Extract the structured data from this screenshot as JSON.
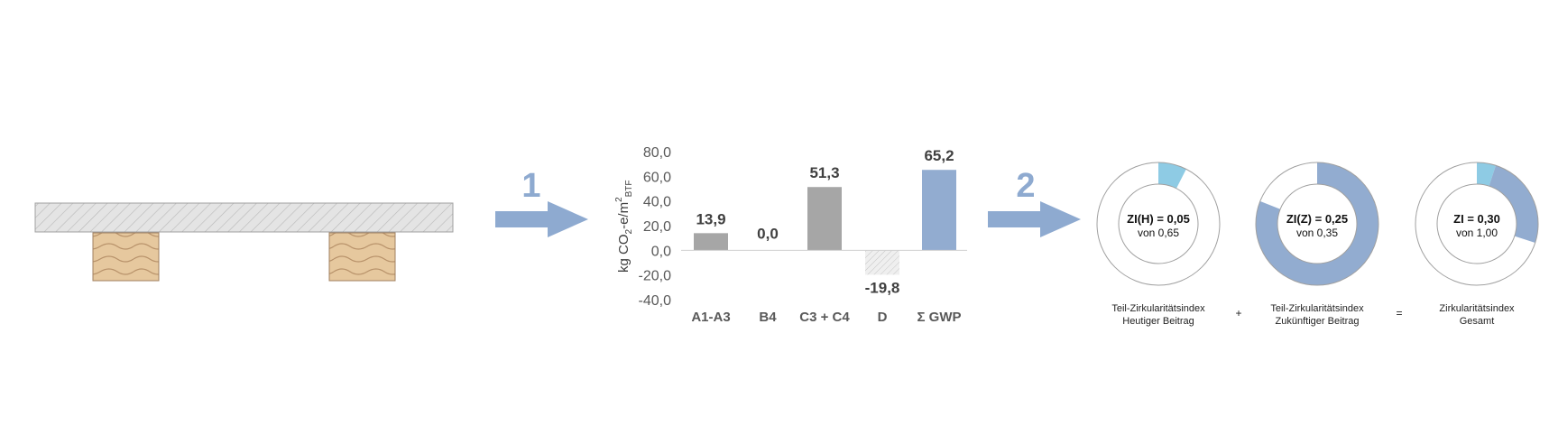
{
  "colors": {
    "bar_gray": "#a6a6a6",
    "bar_blue": "#92acd0",
    "arrow": "#8eaad0",
    "donut_present": "#8ecbe4",
    "donut_future": "#92acd0",
    "timber": "#e6c89e",
    "slab": "#e4e4e4"
  },
  "steps": [
    "1",
    "2"
  ],
  "chart_data": {
    "type": "bar",
    "categories": [
      "A1-A3",
      "B4",
      "C3 + C4",
      "D",
      "Σ GWP"
    ],
    "values": [
      13.9,
      0.0,
      51.3,
      -19.8,
      65.2
    ],
    "value_labels": [
      "13,9",
      "0,0",
      "51,3",
      "-19,8",
      "65,2"
    ],
    "ylabel_main": "kg CO",
    "ylabel_sub1": "2",
    "ylabel_mid": "-e/m",
    "ylabel_sup": "2",
    "ylabel_sub2": "BTF",
    "yticks": [
      80,
      60,
      40,
      20,
      0,
      -20,
      -40
    ],
    "ytick_labels": [
      "80,0",
      "60,0",
      "40,0",
      "20,0",
      "0,0",
      "-20,0",
      "-40,0"
    ],
    "ylim": [
      -40,
      80
    ],
    "grid": false,
    "bar_styles": [
      "gray",
      "gray",
      "gray",
      "hatched",
      "blue"
    ]
  },
  "donuts": [
    {
      "title": "ZI(H) = 0,05",
      "sub": "von 0,65",
      "present": 0.05,
      "future": 0.0,
      "caption1": "Teil-Zirkularitätsindex",
      "caption2": "Heutiger Beitrag"
    },
    {
      "title": "ZI(Z) = 0,25",
      "sub": "von 0,35",
      "present": 0.0,
      "future": 0.25,
      "caption1": "Teil-Zirkularitätsindex",
      "caption2": "Zukünftiger Beitrag"
    },
    {
      "title": "ZI = 0,30",
      "sub": "von 1,00",
      "present": 0.05,
      "future": 0.25,
      "caption1": "Zirkularitätsindex",
      "caption2": "Gesamt"
    }
  ],
  "operators": [
    "+",
    "="
  ]
}
